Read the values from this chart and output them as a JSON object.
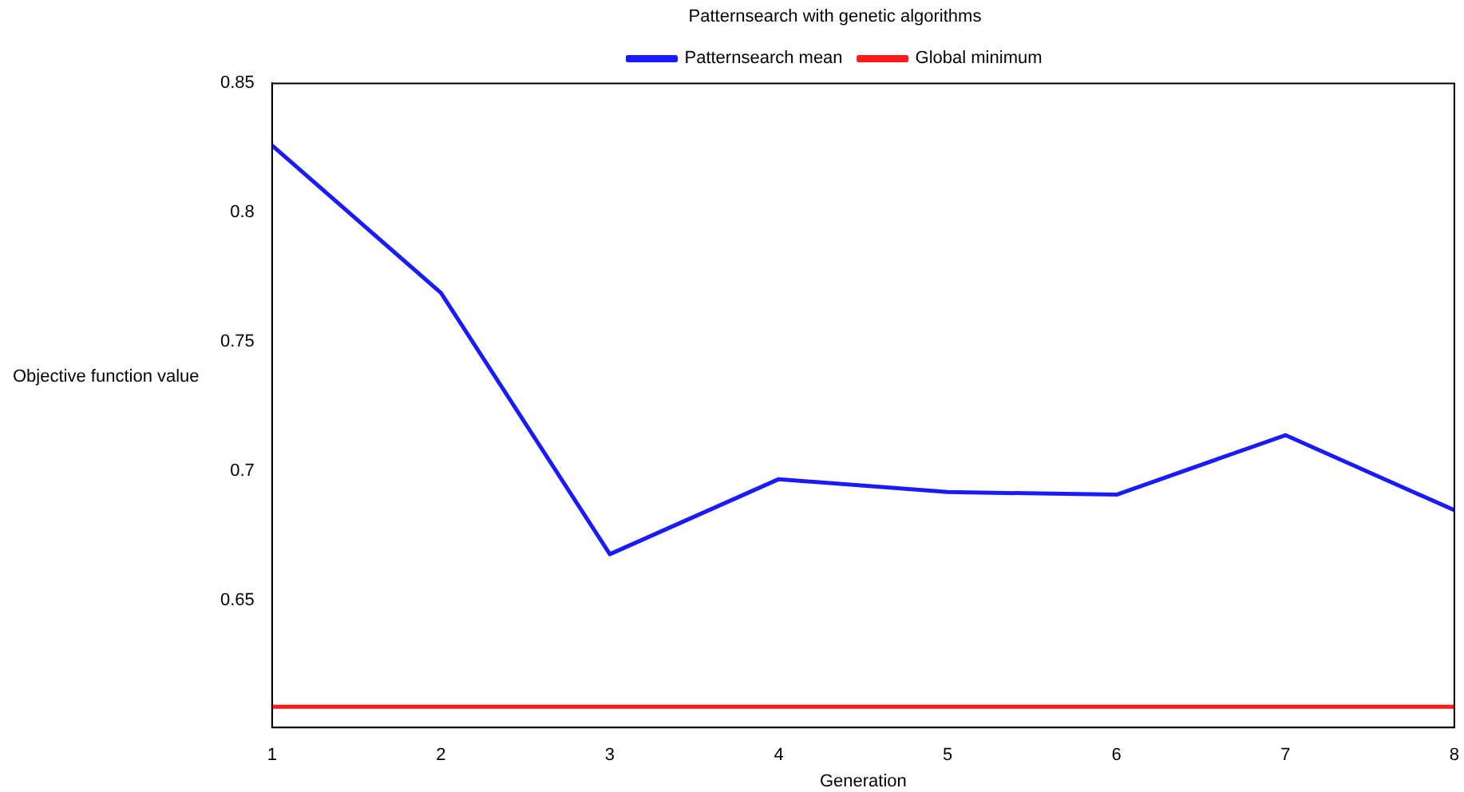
{
  "chart_data": {
    "type": "line",
    "title": "Patternsearch with genetic algorithms",
    "xlabel": "Generation",
    "ylabel": "Objective function value",
    "x": [
      1,
      2,
      3,
      4,
      5,
      6,
      7,
      8
    ],
    "series": [
      {
        "name": "Patternsearch mean",
        "color": "#1a1aff",
        "values": [
          0.826,
          0.769,
          0.668,
          0.697,
          0.692,
          0.691,
          0.714,
          0.685
        ]
      },
      {
        "name": "Global minimum",
        "color": "#ff1a1a",
        "values": [
          0.609,
          0.609,
          0.609,
          0.609,
          0.609,
          0.609,
          0.609,
          0.609
        ]
      }
    ],
    "xlim": [
      1,
      8
    ],
    "xticks": [
      1,
      2,
      3,
      4,
      5,
      6,
      7,
      8
    ],
    "ylim": [
      0.601,
      0.85
    ],
    "yticks": [
      0.65,
      0.7,
      0.75,
      0.8,
      0.85
    ],
    "grid": false,
    "legend": "top",
    "marker": "none",
    "line_style": "solid"
  }
}
